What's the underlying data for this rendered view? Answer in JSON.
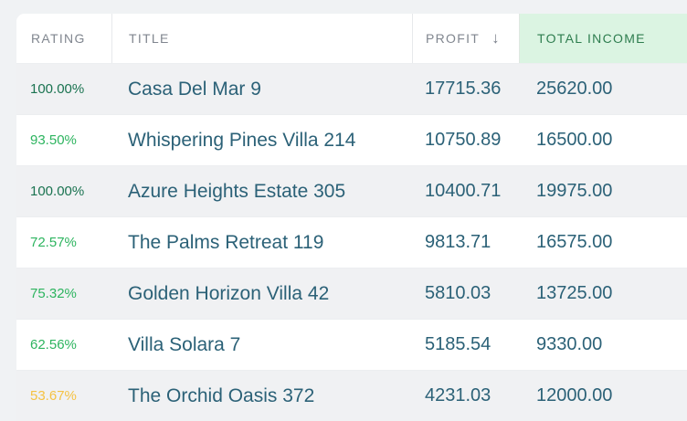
{
  "page": {
    "background": "#f0f2f4"
  },
  "table": {
    "columns": [
      {
        "id": "rating",
        "label": "RATING"
      },
      {
        "id": "title",
        "label": "TITLE"
      },
      {
        "id": "profit",
        "label": "PROFIT",
        "sorted": "desc"
      },
      {
        "id": "total_income",
        "label": "TOTAL INCOME",
        "highlighted": true
      }
    ],
    "sort_icon_glyph": "↓",
    "rows": [
      {
        "rating": "100.00%",
        "rating_color": "dark-green",
        "title": "Casa Del Mar 9",
        "profit": "17715.36",
        "income": "25620.00"
      },
      {
        "rating": "93.50%",
        "rating_color": "green",
        "title": "Whispering Pines Villa 214",
        "profit": "10750.89",
        "income": "16500.00"
      },
      {
        "rating": "100.00%",
        "rating_color": "dark-green",
        "title": "Azure Heights Estate 305",
        "profit": "10400.71",
        "income": "19975.00"
      },
      {
        "rating": "72.57%",
        "rating_color": "green",
        "title": "The Palms Retreat 119",
        "profit": "9813.71",
        "income": "16575.00"
      },
      {
        "rating": "75.32%",
        "rating_color": "green",
        "title": "Golden Horizon Villa 42",
        "profit": "5810.03",
        "income": "13725.00"
      },
      {
        "rating": "62.56%",
        "rating_color": "green",
        "title": "Villa Solara 7",
        "profit": "5185.54",
        "income": "9330.00"
      },
      {
        "rating": "53.67%",
        "rating_color": "amber",
        "title": "The Orchid Oasis 372",
        "profit": "4231.03",
        "income": "12000.00"
      }
    ],
    "colors": {
      "row_stripe": "#f0f1f3",
      "header_text": "#80868f",
      "highlight_header_bg": "#dbf4e2",
      "highlight_header_text": "#2e7d4f",
      "value_text": "#2b6177",
      "rating_dark_green": "#1a7350",
      "rating_green": "#2db45f",
      "rating_amber": "#f5c243"
    }
  }
}
